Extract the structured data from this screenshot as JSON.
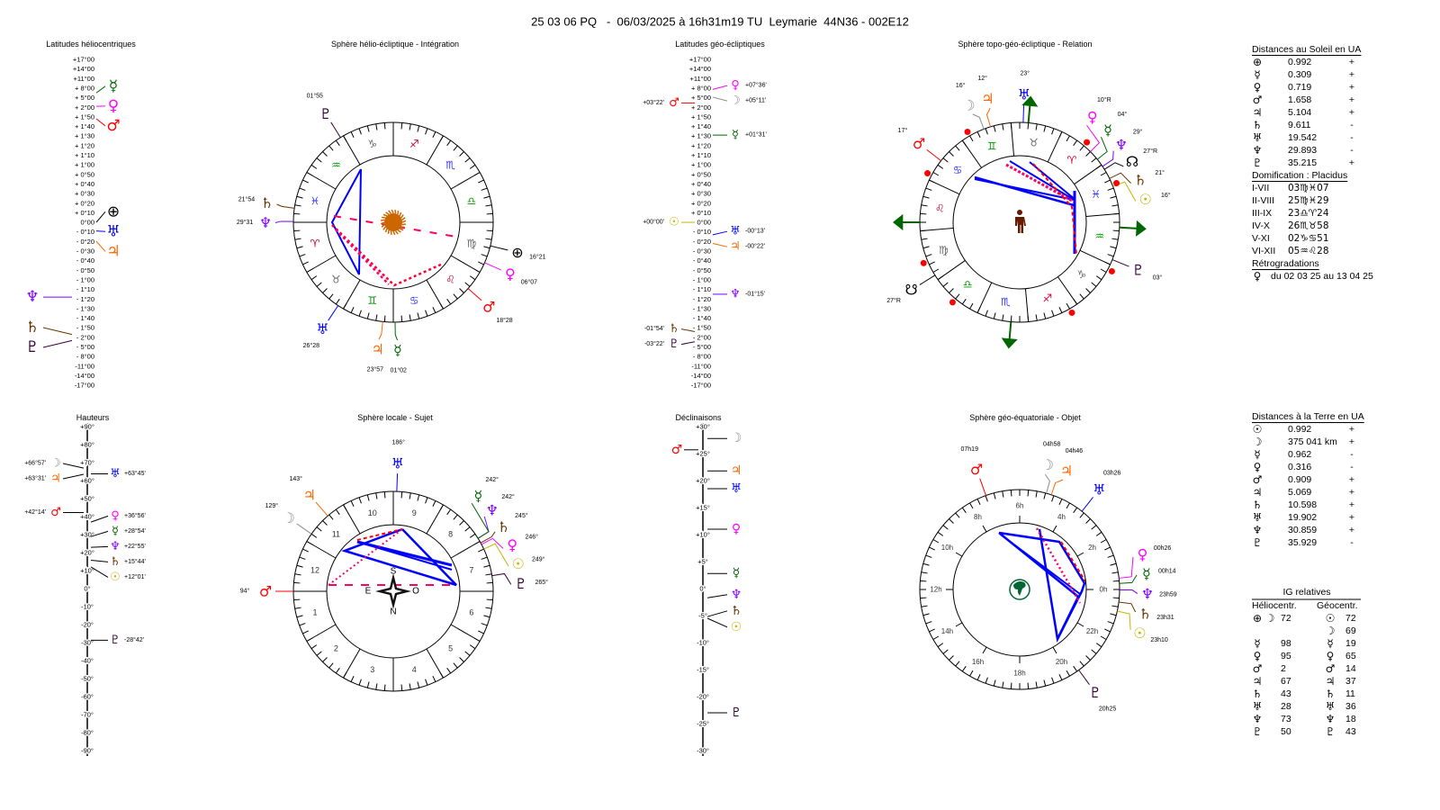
{
  "header": {
    "title": "25 03 06 PQ   -  06/03/2025 à 16h31m19 TU  Leymarie  44N36 - 002E12"
  },
  "icons": {
    "sun": "☉",
    "moon": "☽",
    "mercury": "☿",
    "venus": "♀",
    "mars": "♂",
    "jupiter": "♃",
    "saturn": "♄",
    "uranus": "♅",
    "neptune": "♆",
    "pluto": "♇",
    "earth": "⊕",
    "north_node": "☊",
    "south_node": "☋"
  },
  "colors": {
    "sun": "#c8b400",
    "moon": "#8c8c8c",
    "mercury": "#006600",
    "venus": "#ff00ff",
    "mars": "#ff0000",
    "jupiter": "#ff6600",
    "saturn": "#663300",
    "uranus": "#0000ff",
    "neptune": "#7f00ff",
    "pluto": "#330033",
    "earth": "#000000",
    "north_node": "#000000",
    "south_node": "#000000",
    "aspect_blue": "#0000ff",
    "aspect_red": "#ff0033",
    "arrow_green": "#006600"
  },
  "sign_colors": [
    "#cc0033",
    "#666666",
    "#009900",
    "#3333ff",
    "#cc0033",
    "#666666",
    "#009900",
    "#3333ff",
    "#cc0033",
    "#666666",
    "#009900",
    "#3333ff"
  ],
  "helio_latitudes": {
    "title": "Latitudes héliocentriques",
    "scale": [
      "+17°00",
      "+14°00",
      "+11°00",
      "+ 8°00",
      "+ 5°00",
      "+ 2°00",
      "+ 1°50",
      "+ 1°40",
      "+ 1°30",
      "+ 1°20",
      "+ 1°10",
      "+ 1°00",
      "+ 0°50",
      "+ 0°40",
      "+ 0°30",
      "+ 0°20",
      "+ 0°10",
      "0°00",
      "- 0°10",
      "- 0°20",
      "- 0°30",
      "- 0°40",
      "- 0°50",
      "- 1°00",
      "- 1°10",
      "- 1°20",
      "- 1°30",
      "- 1°40",
      "- 1°50",
      "- 2°00",
      "- 5°00",
      "- 8°00",
      "-11°00",
      "-14°00",
      "-17°00"
    ],
    "planets": [
      {
        "body": "mercury",
        "lat": 6.5,
        "side": "right"
      },
      {
        "body": "venus",
        "lat": 2.3,
        "side": "right"
      },
      {
        "body": "mars",
        "lat": 1.8,
        "side": "right"
      },
      {
        "body": "earth",
        "lat": 0,
        "side": "right"
      },
      {
        "body": "uranus",
        "lat": -0.15,
        "side": "right"
      },
      {
        "body": "jupiter",
        "lat": -0.33,
        "side": "right"
      },
      {
        "body": "neptune",
        "lat": -1.3,
        "side": "left"
      },
      {
        "body": "saturn",
        "lat": -1.95,
        "side": "left"
      },
      {
        "body": "pluto",
        "lat": -3.0,
        "side": "left"
      }
    ]
  },
  "helio_sphere": {
    "title": "Sphère hélio-écliptique - Intégration",
    "signs": [
      "♈",
      "♉",
      "♊",
      "♋",
      "♌",
      "♍",
      "♎",
      "♏",
      "♐",
      "♑",
      "♒",
      "♓"
    ],
    "planets": [
      {
        "body": "pluto",
        "lon": 301.92,
        "label": "01°55"
      },
      {
        "body": "saturn",
        "lon": 351.9,
        "label": "21°54"
      },
      {
        "body": "neptune",
        "lon": 359.52,
        "label": "29°31"
      },
      {
        "body": "earth",
        "lon": 166.35,
        "label": "16°21"
      },
      {
        "body": "venus",
        "lon": 156.12,
        "label": "06°07"
      },
      {
        "body": "mars",
        "lon": 138.47,
        "label": "18°28"
      },
      {
        "body": "uranus",
        "lon": 56.47,
        "label": "26°28"
      },
      {
        "body": "jupiter",
        "lon": 83.95,
        "label": "23°57"
      },
      {
        "body": "mercury",
        "lon": 91.03,
        "label": "01°02"
      }
    ]
  },
  "geo_latitudes": {
    "title": "Latitudes géo-écliptiques",
    "scale": [
      "+17°00",
      "+14°00",
      "+11°00",
      "+ 8°00",
      "+ 5°00",
      "+ 2°00",
      "+ 1°50",
      "+ 1°40",
      "+ 1°30",
      "+ 1°20",
      "+ 1°10",
      "+ 1°00",
      "+ 0°50",
      "+ 0°40",
      "+ 0°30",
      "+ 0°20",
      "+ 0°10",
      "0°00",
      "- 0°10",
      "- 0°20",
      "- 0°30",
      "- 0°40",
      "- 0°50",
      "- 1°00",
      "- 1°10",
      "- 1°20",
      "- 1°30",
      "- 1°40",
      "- 1°50",
      "- 2°00",
      "- 5°00",
      "- 8°00",
      "-11°00",
      "-14°00",
      "-17°00"
    ],
    "planets": [
      {
        "body": "venus",
        "label": "+07°36'",
        "side": "right"
      },
      {
        "body": "moon",
        "label": "+05°11'",
        "side": "right"
      },
      {
        "body": "mars",
        "label": "+03°22'",
        "side": "left"
      },
      {
        "body": "mercury",
        "label": "+01°31'",
        "side": "right"
      },
      {
        "body": "sun",
        "label": "+00°00'",
        "side": "left"
      },
      {
        "body": "uranus",
        "label": "-00°13'",
        "side": "right"
      },
      {
        "body": "jupiter",
        "label": "-00°22'",
        "side": "right"
      },
      {
        "body": "neptune",
        "label": "-01°15'",
        "side": "right"
      },
      {
        "body": "saturn",
        "label": "-01°54'",
        "side": "left"
      },
      {
        "body": "pluto",
        "label": "-03°22'",
        "side": "left"
      }
    ]
  },
  "topo_sphere": {
    "title": "Sphère topo-géo-écliptique - Relation",
    "signs": [
      "♈",
      "♉",
      "♊",
      "♋",
      "♌",
      "♍",
      "♎",
      "♏",
      "♐",
      "♑",
      "♒",
      "♓"
    ],
    "planets": [
      {
        "body": "moon",
        "lon": 76,
        "label": "16°"
      },
      {
        "body": "jupiter",
        "lon": 72,
        "label": "12°"
      },
      {
        "body": "uranus",
        "lon": 53,
        "label": "23°"
      },
      {
        "body": "mars",
        "lon": 107,
        "label": "17°"
      },
      {
        "body": "venus",
        "lon": 10,
        "label": "10°R"
      },
      {
        "body": "mercury",
        "lon": 4,
        "label": "04°"
      },
      {
        "body": "neptune",
        "lon": 359,
        "label": "29°"
      },
      {
        "body": "north_node",
        "lon": 357,
        "label": "27°R"
      },
      {
        "body": "saturn",
        "lon": 351,
        "label": "21°"
      },
      {
        "body": "sun",
        "lon": 346,
        "label": "16°"
      },
      {
        "body": "south_node",
        "lon": 177,
        "label": "27°R"
      },
      {
        "body": "pluto",
        "lon": 303,
        "label": "03°"
      }
    ]
  },
  "heights": {
    "title": "Hauteurs",
    "scale": [
      "+90°",
      "+80°",
      "+70°",
      "+60°",
      "+50°",
      "+40°",
      "+30°",
      "+20°",
      "+10°",
      "0°",
      "-10°",
      "-20°",
      "-30°",
      "-40°",
      "-50°",
      "-60°",
      "-70°",
      "-80°",
      "-90°"
    ],
    "planets": [
      {
        "body": "moon",
        "label": "+66°57'",
        "side": "left"
      },
      {
        "body": "jupiter",
        "label": "+63°31'",
        "side": "left"
      },
      {
        "body": "uranus",
        "label": "+63°45'",
        "side": "right"
      },
      {
        "body": "mars",
        "label": "+42°14'",
        "side": "left"
      },
      {
        "body": "venus",
        "label": "+36°56'",
        "side": "right"
      },
      {
        "body": "mercury",
        "label": "+28°54'",
        "side": "right"
      },
      {
        "body": "neptune",
        "label": "+22°55'",
        "side": "right"
      },
      {
        "body": "saturn",
        "label": "+15°44'",
        "side": "right"
      },
      {
        "body": "sun",
        "label": "+12°01'",
        "side": "right"
      },
      {
        "body": "pluto",
        "label": "-28°42'",
        "side": "right"
      }
    ]
  },
  "local_sphere": {
    "title": "Sphère locale - Sujet",
    "houses": [
      "1",
      "2",
      "3",
      "4",
      "5",
      "6",
      "7",
      "8",
      "9",
      "10",
      "11",
      "12"
    ],
    "compass": {
      "s": "S",
      "e": "E",
      "o": "O",
      "n": "N"
    },
    "planets": [
      {
        "body": "mars",
        "label": "94°"
      },
      {
        "body": "moon",
        "label": "129°"
      },
      {
        "body": "jupiter",
        "label": "143°"
      },
      {
        "body": "uranus",
        "label": "186°"
      },
      {
        "body": "neptune",
        "label": "242°"
      },
      {
        "body": "mercury",
        "label": "242°"
      },
      {
        "body": "saturn",
        "label": "245°"
      },
      {
        "body": "venus",
        "label": "246°"
      },
      {
        "body": "sun",
        "label": "249°"
      },
      {
        "body": "pluto",
        "label": "265°"
      }
    ]
  },
  "declinations": {
    "title": "Déclinaisons",
    "scale": [
      "+30°",
      "+25°",
      "+20°",
      "+15°",
      "+10°",
      "+5°",
      "0°",
      "-5°",
      "-10°",
      "-15°",
      "-20°",
      "-25°",
      "-30°"
    ],
    "planets": [
      {
        "body": "moon",
        "dec": 27.8,
        "side": "right"
      },
      {
        "body": "mars",
        "dec": 25.7,
        "side": "left"
      },
      {
        "body": "jupiter",
        "dec": 21.8,
        "side": "right"
      },
      {
        "body": "uranus",
        "dec": 18.5,
        "side": "right"
      },
      {
        "body": "venus",
        "dec": 11,
        "side": "right"
      },
      {
        "body": "mercury",
        "dec": 2.8,
        "side": "right"
      },
      {
        "body": "neptune",
        "dec": -1.7,
        "side": "right"
      },
      {
        "body": "saturn",
        "dec": -5.2,
        "side": "right"
      },
      {
        "body": "sun",
        "dec": -5.5,
        "side": "right"
      },
      {
        "body": "pluto",
        "dec": -23,
        "side": "right"
      }
    ]
  },
  "equatorial_sphere": {
    "title": "Sphère géo-équatoriale - Objet",
    "hours": [
      "0h",
      "2h",
      "4h",
      "6h",
      "8h",
      "10h",
      "12h",
      "14h",
      "16h",
      "18h",
      "20h",
      "22h"
    ],
    "planets": [
      {
        "body": "mars",
        "label": "07h19"
      },
      {
        "body": "moon",
        "label": "04h58"
      },
      {
        "body": "jupiter",
        "label": "04h46"
      },
      {
        "body": "uranus",
        "label": "03h26"
      },
      {
        "body": "venus",
        "label": "00h26"
      },
      {
        "body": "mercury",
        "label": "00h14"
      },
      {
        "body": "neptune",
        "label": "23h59"
      },
      {
        "body": "saturn",
        "label": "23h31"
      },
      {
        "body": "sun",
        "label": "23h10"
      },
      {
        "body": "pluto",
        "label": "20h25"
      }
    ]
  },
  "sun_distances": {
    "title": "Distances au Soleil en UA",
    "rows": [
      {
        "body": "earth",
        "value": "0.992",
        "trend": "+"
      },
      {
        "body": "mercury",
        "value": "0.309",
        "trend": "+"
      },
      {
        "body": "venus",
        "value": "0.719",
        "trend": "+"
      },
      {
        "body": "mars",
        "value": "1.658",
        "trend": "+"
      },
      {
        "body": "jupiter",
        "value": "5.104",
        "trend": "+"
      },
      {
        "body": "saturn",
        "value": "9.611",
        "trend": "-"
      },
      {
        "body": "uranus",
        "value": "19.542",
        "trend": "-"
      },
      {
        "body": "neptune",
        "value": "29.893",
        "trend": "-"
      },
      {
        "body": "pluto",
        "value": "35.215",
        "trend": "+"
      }
    ]
  },
  "domification": {
    "title": "Domification : Placidus",
    "rows": [
      {
        "houses": "I-VII",
        "value": "03♍♓07"
      },
      {
        "houses": "II-VIII",
        "value": "25♍♓29"
      },
      {
        "houses": "III-IX",
        "value": "23♎♈24"
      },
      {
        "houses": "IV-X",
        "value": "26♏♉58"
      },
      {
        "houses": "V-XI",
        "value": "02♑♋51"
      },
      {
        "houses": "VI-XII",
        "value": "05♒♌28"
      }
    ]
  },
  "retrogradations": {
    "title": "Rétrogradations",
    "rows": [
      {
        "body": "venus",
        "text": "du 02 03 25 au 13 04 25"
      }
    ]
  },
  "earth_distances": {
    "title": "Distances à la Terre en UA",
    "rows": [
      {
        "body": "sun",
        "value": "0.992",
        "trend": "+"
      },
      {
        "body": "moon",
        "value": "375 041 km",
        "trend": "+"
      },
      {
        "body": "mercury",
        "value": "0.962",
        "trend": "-"
      },
      {
        "body": "venus",
        "value": "0.316",
        "trend": "-"
      },
      {
        "body": "mars",
        "value": "0.909",
        "trend": "+"
      },
      {
        "body": "jupiter",
        "value": "5.069",
        "trend": "+"
      },
      {
        "body": "saturn",
        "value": "10.598",
        "trend": "+"
      },
      {
        "body": "uranus",
        "value": "19.902",
        "trend": "+"
      },
      {
        "body": "neptune",
        "value": "30.859",
        "trend": "+"
      },
      {
        "body": "pluto",
        "value": "35.929",
        "trend": "-"
      }
    ]
  },
  "ig_relatives": {
    "title": "IG relatives",
    "helio_header": "Héliocentr.",
    "geo_header": "Géocentr.",
    "rows": [
      {
        "helio": {
          "bodies": [
            "earth",
            "moon"
          ],
          "value": "72"
        },
        "geo": {
          "body": "sun",
          "value": "72"
        }
      },
      {
        "helio": null,
        "geo": {
          "body": "moon",
          "value": "69"
        }
      },
      {
        "helio": {
          "bodies": [
            "mercury"
          ],
          "value": "98"
        },
        "geo": {
          "body": "mercury",
          "value": "19"
        }
      },
      {
        "helio": {
          "bodies": [
            "venus"
          ],
          "value": "95"
        },
        "geo": {
          "body": "venus",
          "value": "65"
        }
      },
      {
        "helio": {
          "bodies": [
            "mars"
          ],
          "value": "2"
        },
        "geo": {
          "body": "mars",
          "value": "14"
        }
      },
      {
        "helio": {
          "bodies": [
            "jupiter"
          ],
          "value": "67"
        },
        "geo": {
          "body": "jupiter",
          "value": "37"
        }
      },
      {
        "helio": {
          "bodies": [
            "saturn"
          ],
          "value": "43"
        },
        "geo": {
          "body": "saturn",
          "value": "11"
        }
      },
      {
        "helio": {
          "bodies": [
            "uranus"
          ],
          "value": "28"
        },
        "geo": {
          "body": "uranus",
          "value": "36"
        }
      },
      {
        "helio": {
          "bodies": [
            "neptune"
          ],
          "value": "73"
        },
        "geo": {
          "body": "neptune",
          "value": "18"
        }
      },
      {
        "helio": {
          "bodies": [
            "pluto"
          ],
          "value": "50"
        },
        "geo": {
          "body": "pluto",
          "value": "43"
        }
      }
    ]
  }
}
